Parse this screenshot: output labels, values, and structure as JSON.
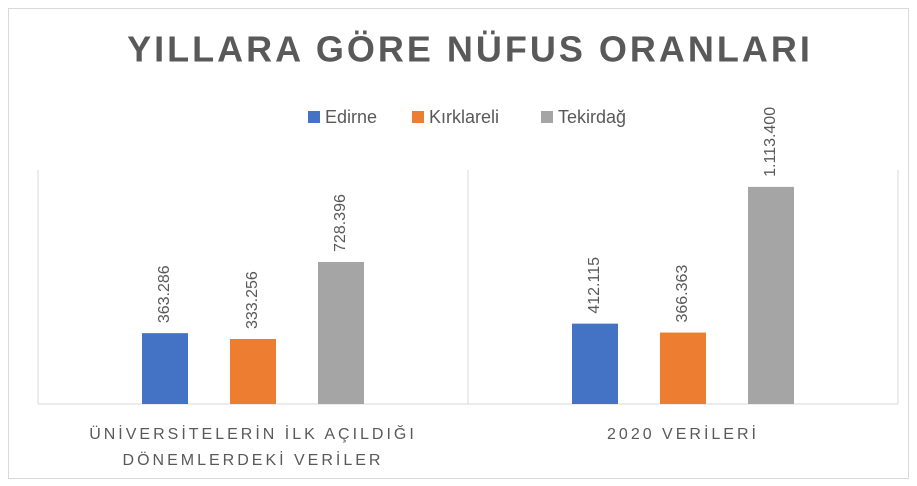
{
  "chart_data": {
    "type": "bar",
    "title": "YILLARA GÖRE NÜFUS ORANLARI",
    "categories": [
      "ÜNİVERSİTELERİN İLK AÇILDIĞI DÖNEMLERDEKİ VERİLER",
      "2020 VERİLERİ"
    ],
    "series": [
      {
        "name": "Edirne",
        "color": "#4472c4",
        "values": [
          363286,
          412115
        ],
        "value_labels": [
          "363.286",
          "412.115"
        ]
      },
      {
        "name": "Kırklareli",
        "color": "#ed7d31",
        "values": [
          333256,
          366363
        ],
        "value_labels": [
          "333.256",
          "366.363"
        ]
      },
      {
        "name": "Tekirdağ",
        "color": "#a5a5a5",
        "values": [
          728396,
          1113400
        ],
        "value_labels": [
          "728.396",
          "1.113.400"
        ]
      }
    ],
    "ylim": [
      0,
      1200000
    ],
    "legend": "top"
  }
}
